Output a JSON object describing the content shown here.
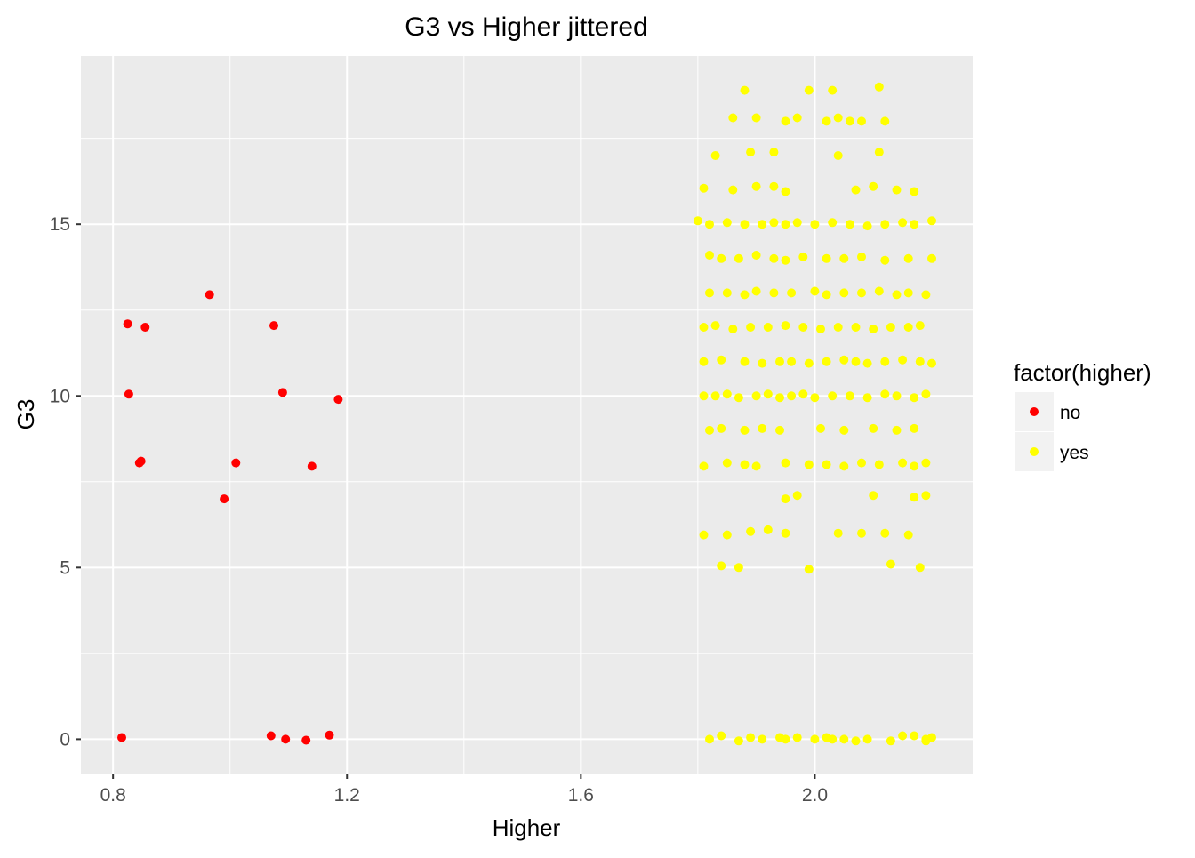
{
  "chart_data": {
    "type": "scatter",
    "title": "G3 vs Higher jittered",
    "xlabel": "Higher",
    "ylabel": "G3",
    "xlim": [
      0.745,
      2.27
    ],
    "ylim": [
      -1.0,
      19.9
    ],
    "x_ticks": [
      0.8,
      1.2,
      1.6,
      2.0
    ],
    "x_tick_labels": [
      "0.8",
      "1.2",
      "1.6",
      "2.0"
    ],
    "y_ticks": [
      0,
      5,
      10,
      15
    ],
    "y_tick_labels": [
      "0",
      "5",
      "10",
      "15"
    ],
    "grid": true,
    "legend": {
      "title": "factor(higher)",
      "placement": "right",
      "entries": [
        {
          "label": "no",
          "color": "#ff0000"
        },
        {
          "label": "yes",
          "color": "#ffff00"
        }
      ]
    },
    "series": [
      {
        "name": "no",
        "color": "#ff0000",
        "points": [
          [
            0.815,
            0.05
          ],
          [
            1.07,
            0.1
          ],
          [
            1.095,
            0.0
          ],
          [
            1.13,
            -0.03
          ],
          [
            1.17,
            0.12
          ],
          [
            0.825,
            12.1
          ],
          [
            0.855,
            12.0
          ],
          [
            0.965,
            12.95
          ],
          [
            1.075,
            12.05
          ],
          [
            0.827,
            10.05
          ],
          [
            1.09,
            10.1
          ],
          [
            1.185,
            9.9
          ],
          [
            0.845,
            8.05
          ],
          [
            0.848,
            8.1
          ],
          [
            1.01,
            8.05
          ],
          [
            1.14,
            7.95
          ],
          [
            0.99,
            7.0
          ]
        ]
      },
      {
        "name": "yes",
        "color": "#ffff00",
        "points": [
          [
            1.88,
            18.9
          ],
          [
            1.99,
            18.9
          ],
          [
            2.03,
            18.9
          ],
          [
            2.11,
            19.0
          ],
          [
            1.86,
            18.1
          ],
          [
            1.9,
            18.1
          ],
          [
            1.95,
            18.0
          ],
          [
            1.97,
            18.1
          ],
          [
            2.02,
            18.0
          ],
          [
            2.04,
            18.1
          ],
          [
            2.06,
            18.0
          ],
          [
            2.08,
            18.0
          ],
          [
            2.12,
            18.0
          ],
          [
            1.83,
            17.0
          ],
          [
            1.89,
            17.1
          ],
          [
            1.93,
            17.1
          ],
          [
            2.04,
            17.0
          ],
          [
            2.11,
            17.1
          ],
          [
            1.81,
            16.05
          ],
          [
            1.86,
            16.0
          ],
          [
            1.9,
            16.1
          ],
          [
            1.93,
            16.1
          ],
          [
            1.95,
            15.95
          ],
          [
            2.07,
            16.0
          ],
          [
            2.1,
            16.1
          ],
          [
            2.14,
            16.0
          ],
          [
            2.17,
            15.95
          ],
          [
            1.8,
            15.1
          ],
          [
            1.82,
            15.0
          ],
          [
            1.85,
            15.05
          ],
          [
            1.88,
            15.0
          ],
          [
            1.91,
            15.0
          ],
          [
            1.93,
            15.05
          ],
          [
            1.95,
            15.0
          ],
          [
            1.97,
            15.05
          ],
          [
            2.0,
            15.0
          ],
          [
            2.03,
            15.05
          ],
          [
            2.06,
            15.0
          ],
          [
            2.09,
            14.95
          ],
          [
            2.12,
            15.0
          ],
          [
            2.15,
            15.05
          ],
          [
            2.17,
            15.0
          ],
          [
            2.2,
            15.1
          ],
          [
            1.82,
            14.1
          ],
          [
            1.84,
            14.0
          ],
          [
            1.87,
            14.0
          ],
          [
            1.9,
            14.1
          ],
          [
            1.93,
            14.0
          ],
          [
            1.95,
            13.95
          ],
          [
            1.98,
            14.05
          ],
          [
            2.02,
            14.0
          ],
          [
            2.05,
            14.0
          ],
          [
            2.08,
            14.05
          ],
          [
            2.12,
            13.95
          ],
          [
            2.16,
            14.0
          ],
          [
            2.2,
            14.0
          ],
          [
            1.82,
            13.0
          ],
          [
            1.85,
            13.0
          ],
          [
            1.88,
            12.95
          ],
          [
            1.9,
            13.05
          ],
          [
            1.93,
            13.0
          ],
          [
            1.96,
            13.0
          ],
          [
            2.0,
            13.05
          ],
          [
            2.02,
            12.95
          ],
          [
            2.05,
            13.0
          ],
          [
            2.08,
            13.0
          ],
          [
            2.11,
            13.05
          ],
          [
            2.14,
            12.95
          ],
          [
            2.16,
            13.0
          ],
          [
            2.19,
            12.95
          ],
          [
            1.81,
            12.0
          ],
          [
            1.83,
            12.05
          ],
          [
            1.86,
            11.95
          ],
          [
            1.89,
            12.0
          ],
          [
            1.92,
            12.0
          ],
          [
            1.95,
            12.05
          ],
          [
            1.98,
            12.0
          ],
          [
            2.01,
            11.95
          ],
          [
            2.04,
            12.0
          ],
          [
            2.07,
            12.0
          ],
          [
            2.1,
            11.95
          ],
          [
            2.13,
            12.0
          ],
          [
            2.16,
            12.0
          ],
          [
            2.18,
            12.05
          ],
          [
            1.81,
            11.0
          ],
          [
            1.84,
            11.05
          ],
          [
            1.88,
            11.0
          ],
          [
            1.91,
            10.95
          ],
          [
            1.94,
            11.0
          ],
          [
            1.96,
            11.0
          ],
          [
            1.99,
            10.95
          ],
          [
            2.02,
            11.0
          ],
          [
            2.05,
            11.05
          ],
          [
            2.07,
            11.0
          ],
          [
            2.09,
            10.95
          ],
          [
            2.12,
            11.0
          ],
          [
            2.15,
            11.05
          ],
          [
            2.18,
            11.0
          ],
          [
            2.2,
            10.95
          ],
          [
            1.81,
            10.0
          ],
          [
            1.83,
            10.0
          ],
          [
            1.85,
            10.05
          ],
          [
            1.87,
            9.95
          ],
          [
            1.9,
            10.0
          ],
          [
            1.92,
            10.05
          ],
          [
            1.94,
            9.95
          ],
          [
            1.96,
            10.0
          ],
          [
            1.98,
            10.05
          ],
          [
            2.0,
            9.95
          ],
          [
            2.03,
            10.0
          ],
          [
            2.06,
            10.0
          ],
          [
            2.09,
            9.95
          ],
          [
            2.12,
            10.05
          ],
          [
            2.14,
            10.0
          ],
          [
            2.17,
            9.95
          ],
          [
            2.19,
            10.05
          ],
          [
            1.82,
            9.0
          ],
          [
            1.84,
            9.05
          ],
          [
            1.88,
            9.0
          ],
          [
            1.91,
            9.05
          ],
          [
            1.94,
            9.0
          ],
          [
            2.01,
            9.05
          ],
          [
            2.05,
            9.0
          ],
          [
            2.1,
            9.05
          ],
          [
            2.14,
            9.0
          ],
          [
            2.17,
            9.05
          ],
          [
            1.81,
            7.95
          ],
          [
            1.85,
            8.05
          ],
          [
            1.88,
            8.0
          ],
          [
            1.9,
            7.95
          ],
          [
            1.95,
            8.05
          ],
          [
            1.99,
            8.0
          ],
          [
            2.02,
            8.0
          ],
          [
            2.05,
            7.95
          ],
          [
            2.08,
            8.05
          ],
          [
            2.11,
            8.0
          ],
          [
            2.15,
            8.05
          ],
          [
            2.17,
            7.95
          ],
          [
            2.19,
            8.05
          ],
          [
            1.97,
            7.1
          ],
          [
            2.1,
            7.1
          ],
          [
            2.17,
            7.05
          ],
          [
            2.19,
            7.1
          ],
          [
            1.95,
            7.0
          ],
          [
            1.81,
            5.95
          ],
          [
            1.85,
            5.95
          ],
          [
            1.89,
            6.05
          ],
          [
            1.92,
            6.1
          ],
          [
            1.95,
            6.0
          ],
          [
            2.04,
            6.0
          ],
          [
            2.08,
            6.0
          ],
          [
            2.12,
            6.0
          ],
          [
            2.16,
            5.95
          ],
          [
            1.84,
            5.05
          ],
          [
            1.87,
            5.0
          ],
          [
            1.99,
            4.95
          ],
          [
            2.13,
            5.1
          ],
          [
            2.18,
            5.0
          ],
          [
            1.82,
            0.0
          ],
          [
            1.84,
            0.1
          ],
          [
            1.87,
            -0.05
          ],
          [
            1.89,
            0.05
          ],
          [
            1.91,
            0.0
          ],
          [
            1.94,
            0.05
          ],
          [
            1.95,
            0.0
          ],
          [
            1.97,
            0.05
          ],
          [
            2.0,
            0.0
          ],
          [
            2.02,
            0.05
          ],
          [
            2.03,
            0.0
          ],
          [
            2.05,
            0.0
          ],
          [
            2.07,
            -0.05
          ],
          [
            2.09,
            0.0
          ],
          [
            2.13,
            -0.05
          ],
          [
            2.15,
            0.1
          ],
          [
            2.17,
            0.1
          ],
          [
            2.19,
            0.0
          ],
          [
            2.2,
            0.05
          ],
          [
            2.19,
            -0.05
          ]
        ]
      }
    ]
  }
}
